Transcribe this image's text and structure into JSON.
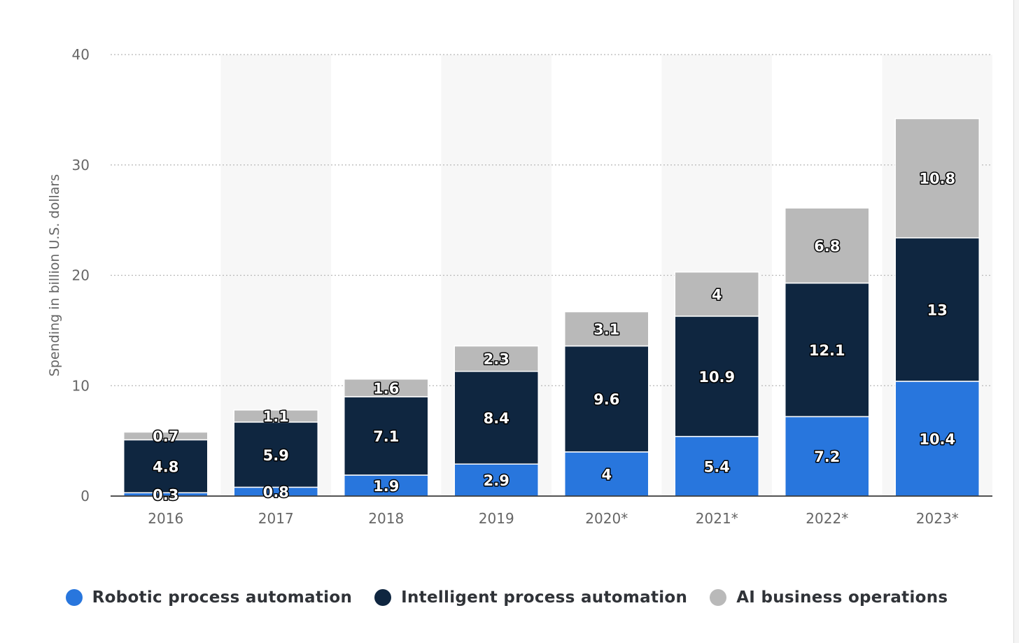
{
  "chart_data": {
    "type": "bar",
    "stacked": true,
    "categories": [
      "2016",
      "2017",
      "2018",
      "2019",
      "2020*",
      "2021*",
      "2022*",
      "2023*"
    ],
    "series": [
      {
        "name": "Robotic process automation",
        "color": "#2876dd",
        "values": [
          0.3,
          0.8,
          1.9,
          2.9,
          4,
          5.4,
          7.2,
          10.4
        ]
      },
      {
        "name": "Intelligent process automation",
        "color": "#0f2640",
        "values": [
          4.8,
          5.9,
          7.1,
          8.4,
          9.6,
          10.9,
          12.1,
          13
        ]
      },
      {
        "name": "AI business operations",
        "color": "#b9b9b9",
        "values": [
          0.7,
          1.1,
          1.6,
          2.3,
          3.1,
          4,
          6.8,
          10.8
        ]
      }
    ],
    "ylabel": "Spending in billion U.S. dollars",
    "xlabel": "",
    "ylim": [
      0,
      40
    ],
    "yticks": [
      0,
      10,
      20,
      30,
      40
    ],
    "grid": true,
    "legend_position": "bottom"
  }
}
